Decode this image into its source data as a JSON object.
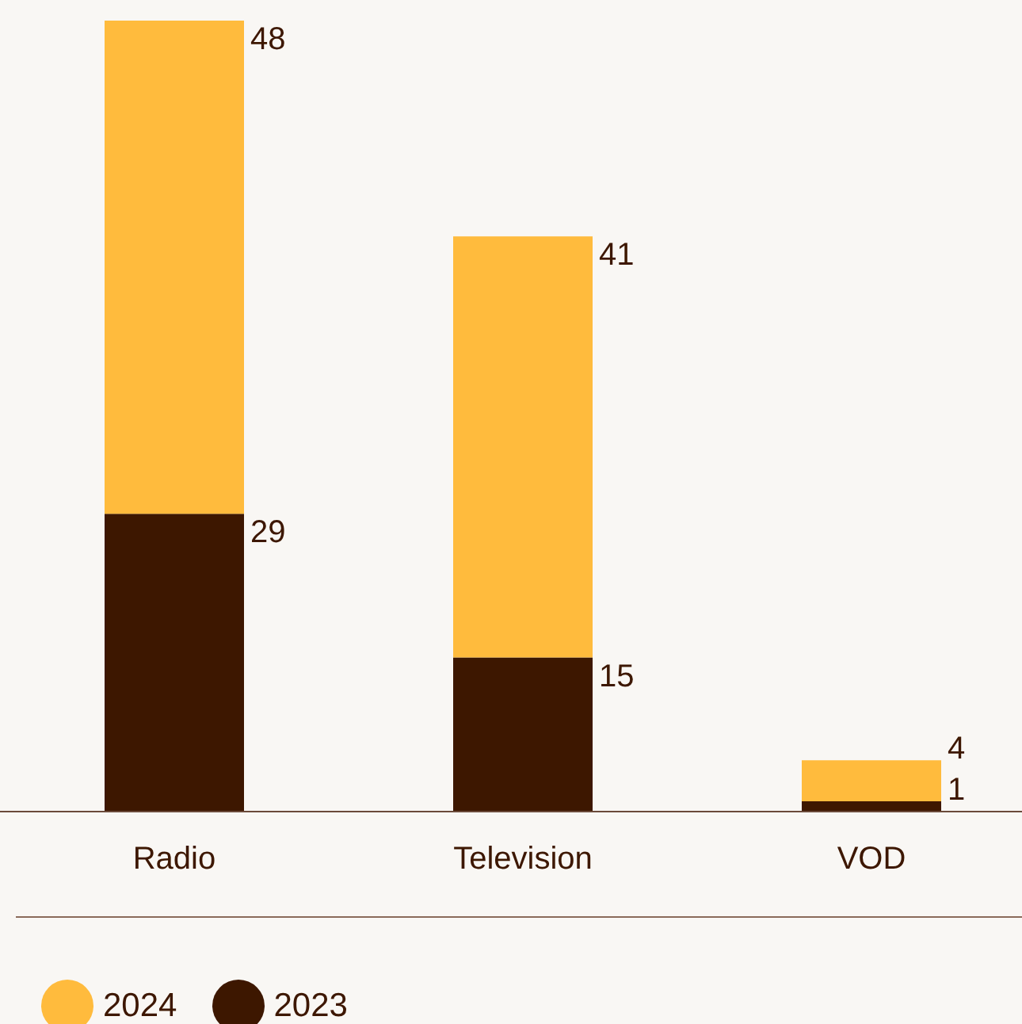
{
  "chart_data": {
    "type": "bar",
    "stacked": true,
    "categories": [
      "Radio",
      "Television",
      "VOD"
    ],
    "series": [
      {
        "name": "2023",
        "color": "#3d1700",
        "values": [
          29,
          15,
          1
        ]
      },
      {
        "name": "2024",
        "color": "#ffbb3d",
        "values": [
          48,
          41,
          4
        ]
      }
    ],
    "data_labels": true,
    "legend": "bottom left",
    "grid": false
  }
}
